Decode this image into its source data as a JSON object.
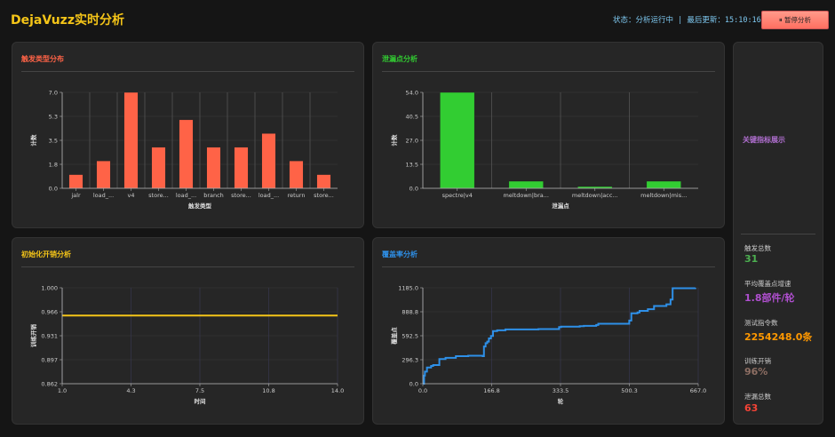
{
  "header": {
    "title": "DejaVuzz实时分析",
    "status_text": "状态：分析运行中 | 最后更新：15:10:16",
    "pause_label": "⏸ 暂停分析"
  },
  "panels": {
    "trigger": {
      "title": "触发类型分布",
      "color": "#ff6347"
    },
    "leak": {
      "title": "泄漏点分析",
      "color": "#32cd32"
    },
    "init": {
      "title": "初始化开销分析",
      "color": "#f5c518"
    },
    "coverage": {
      "title": "覆盖率分析",
      "color": "#2e90e8"
    }
  },
  "metrics": {
    "title": "关键指标展示",
    "items": [
      {
        "label": "触发总数",
        "value": "31",
        "color": "#4caf50"
      },
      {
        "label": "平均覆盖点增速",
        "value": "1.8部件/轮",
        "color": "#b04fd0"
      },
      {
        "label": "测试指令数",
        "value": "2254248.0条",
        "color": "#ff9800"
      },
      {
        "label": "训练开销",
        "value": "96%",
        "color": "#8d6e63"
      },
      {
        "label": "泄漏总数",
        "value": "63",
        "color": "#f44336"
      }
    ]
  },
  "chart_data": [
    {
      "type": "bar",
      "title": "触发类型分布",
      "xlabel": "触发类型",
      "ylabel": "计数",
      "categories": [
        "jalr",
        "load_...",
        "v4",
        "store...",
        "load_...",
        "branch",
        "store...",
        "load_...",
        "return",
        "store..."
      ],
      "values": [
        1,
        2,
        7,
        3,
        5,
        3,
        3,
        4,
        2,
        1
      ],
      "yticks": [
        "0.0",
        "1.8",
        "3.5",
        "5.3",
        "7.0"
      ],
      "ylim": [
        0,
        7
      ],
      "color": "#ff6347"
    },
    {
      "type": "bar",
      "title": "泄漏点分析",
      "xlabel": "泄漏点",
      "ylabel": "计数",
      "categories": [
        "spectre|v4",
        "meltdown|bra...",
        "meltdown|acc...",
        "meltdown|mis..."
      ],
      "values": [
        54,
        4,
        1,
        4
      ],
      "yticks": [
        "0.0",
        "13.5",
        "27.0",
        "40.5",
        "54.0"
      ],
      "ylim": [
        0,
        54
      ],
      "color": "#32cd32"
    },
    {
      "type": "line",
      "title": "初始化开销分析",
      "xlabel": "时间",
      "ylabel": "训练开销",
      "x": [
        1,
        14
      ],
      "y": [
        0.96,
        0.96
      ],
      "xticks": [
        "1.0",
        "4.3",
        "7.5",
        "10.8",
        "14.0"
      ],
      "yticks": [
        "0.862",
        "0.897",
        "0.931",
        "0.966",
        "1.000"
      ],
      "xlim": [
        1,
        14
      ],
      "ylim": [
        0.862,
        1.0
      ],
      "color": "#f5c518"
    },
    {
      "type": "line",
      "title": "覆盖率分析",
      "xlabel": "轮",
      "ylabel": "覆盖点",
      "x": [
        0,
        3,
        5,
        10,
        20,
        25,
        40,
        55,
        80,
        110,
        145,
        148,
        152,
        156,
        160,
        165,
        170,
        180,
        200,
        240,
        280,
        330,
        335,
        380,
        390,
        420,
        425,
        470,
        500,
        505,
        520,
        525,
        545,
        560,
        590,
        600,
        605,
        660
      ],
      "y": [
        0,
        100,
        150,
        200,
        220,
        230,
        305,
        320,
        340,
        345,
        340,
        460,
        500,
        520,
        560,
        590,
        650,
        660,
        670,
        670,
        675,
        700,
        705,
        710,
        715,
        725,
        740,
        740,
        780,
        870,
        880,
        900,
        920,
        960,
        980,
        1040,
        1180,
        1185
      ],
      "xticks": [
        "0.0",
        "166.8",
        "333.5",
        "500.3",
        "667.0"
      ],
      "yticks": [
        "0.0",
        "296.3",
        "592.5",
        "888.8",
        "1185.0"
      ],
      "xlim": [
        0,
        667
      ],
      "ylim": [
        0,
        1185
      ],
      "color": "#2e90e8"
    }
  ]
}
